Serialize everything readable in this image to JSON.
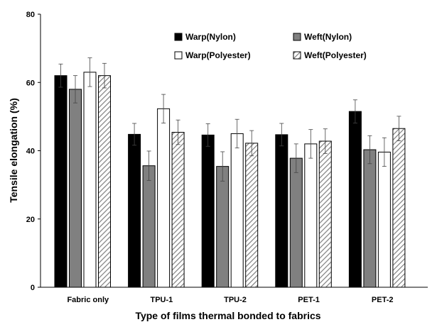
{
  "chart_data": {
    "type": "bar",
    "title": "",
    "xlabel": "Type of films thermal bonded to fabrics",
    "ylabel": "Tensile elongation (%)",
    "ylim": [
      0,
      80
    ],
    "yticks": [
      0,
      20,
      40,
      60,
      80
    ],
    "grid": false,
    "legend_position": "top-right",
    "categories": [
      "Fabric only",
      "TPU-1",
      "TPU-2",
      "PET-1",
      "PET-2"
    ],
    "series": [
      {
        "name": "Warp(Nylon)",
        "fill": "#000000",
        "pattern": "solid",
        "values": [
          62,
          44.8,
          44.6,
          44.7,
          51.5
        ],
        "errors": [
          3.4,
          3.2,
          3.3,
          3.3,
          3.4
        ]
      },
      {
        "name": "Weft(Nylon)",
        "fill": "#808080",
        "pattern": "solid",
        "values": [
          58,
          35.6,
          35.4,
          37.8,
          40.3
        ],
        "errors": [
          4.0,
          4.3,
          4.3,
          4.2,
          4.1
        ]
      },
      {
        "name": "Warp(Polyester)",
        "fill": "#ffffff",
        "pattern": "solid",
        "values": [
          63,
          52.3,
          45,
          42,
          39.6
        ],
        "errors": [
          4.2,
          4.2,
          4.2,
          4.2,
          4.2
        ]
      },
      {
        "name": "Weft(Polyester)",
        "fill": "#bfbfbf",
        "pattern": "diagonal-hatch",
        "values": [
          62,
          45.4,
          42.2,
          42.8,
          46.5
        ],
        "errors": [
          3.6,
          3.6,
          3.7,
          3.6,
          3.6
        ]
      }
    ]
  }
}
